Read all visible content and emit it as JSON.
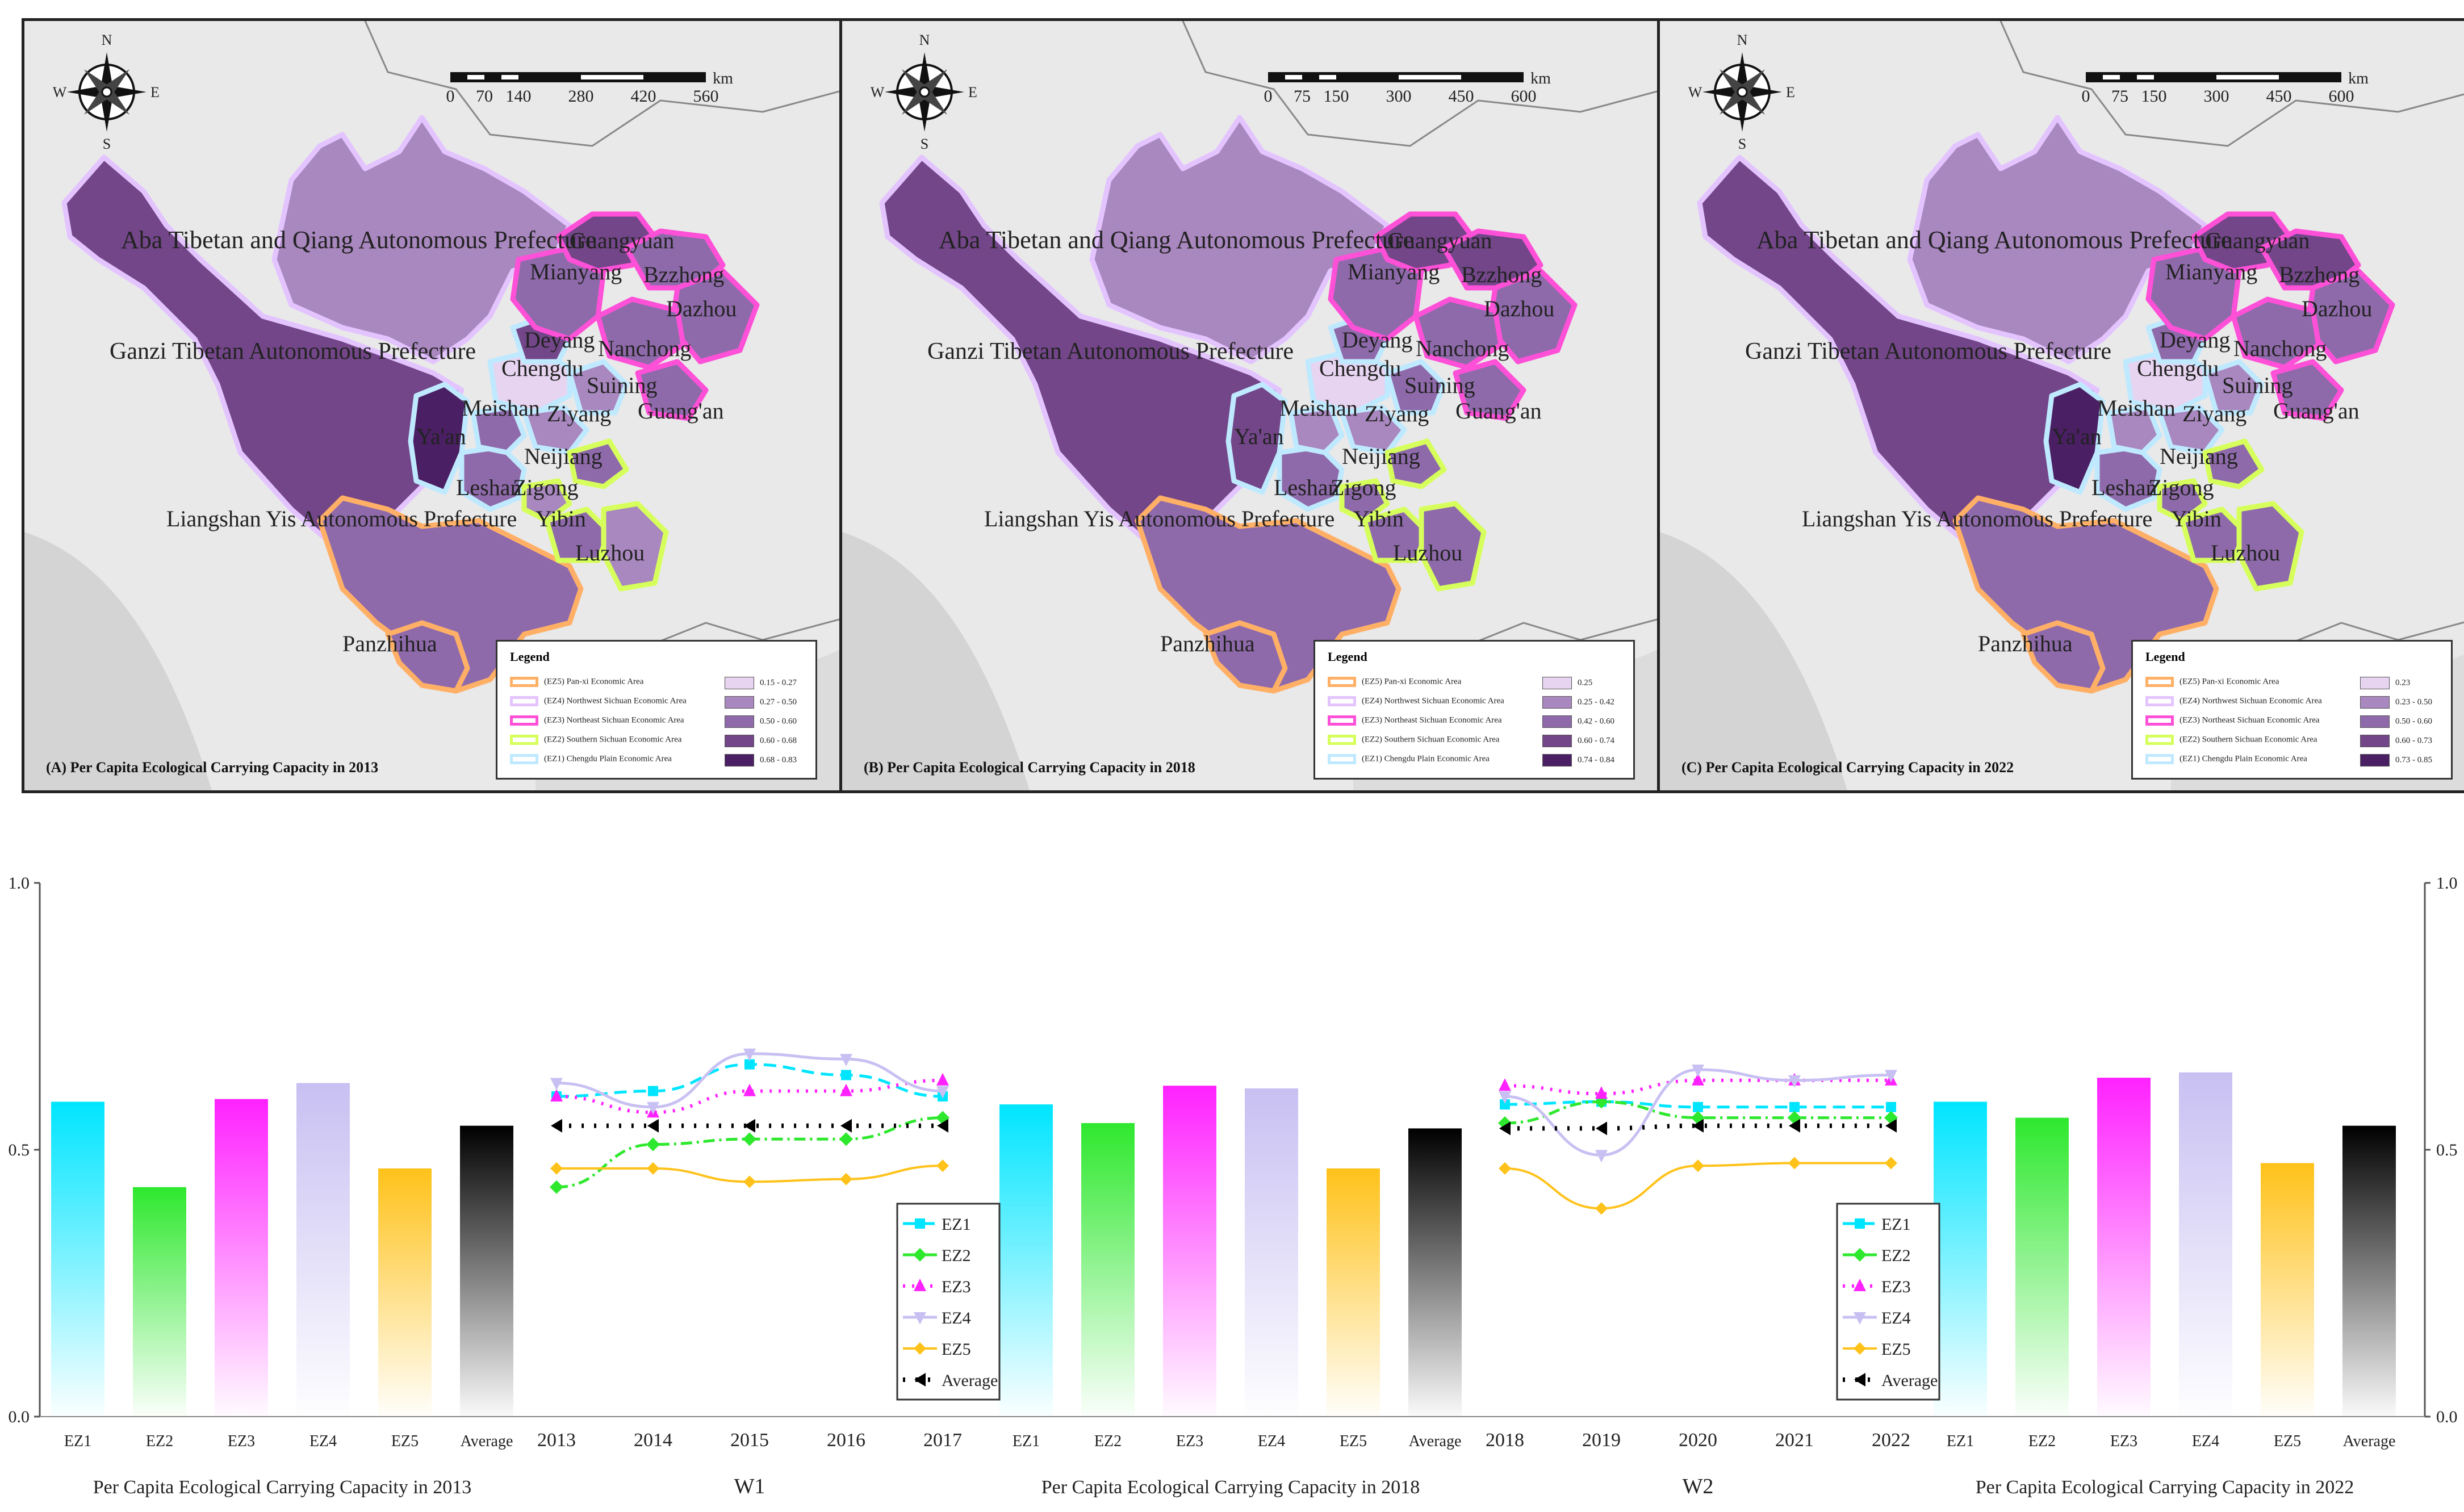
{
  "colors": {
    "EZ1": "#00e5ff",
    "EZ2": "#2ee82e",
    "EZ3": "#ff22ff",
    "EZ4": "#c8c0f2",
    "EZ5": "#ffc21a",
    "Average": "#000000",
    "class1": "#e7d4f1",
    "class2": "#a987bf",
    "class3": "#8f6aab",
    "class4": "#734689",
    "class5": "#4a1f63"
  },
  "maps": [
    {
      "title": "(A) Per Capita Ecological Carrying Capacity in 2013",
      "scale_ticks": [
        "0",
        "70",
        "140",
        "280",
        "420",
        "560"
      ],
      "scale_unit": "km",
      "legend_classes": [
        "0.15 - 0.27",
        "0.27 - 0.50",
        "0.50 - 0.60",
        "0.60 - 0.68",
        "0.68 - 0.83"
      ]
    },
    {
      "title": "(B) Per Capita Ecological Carrying Capacity in 2018",
      "scale_ticks": [
        "0",
        "75",
        "150",
        "300",
        "450",
        "600"
      ],
      "scale_unit": "km",
      "legend_classes": [
        "0.25",
        "0.25 - 0.42",
        "0.42 - 0.60",
        "0.60 - 0.74",
        "0.74 - 0.84"
      ]
    },
    {
      "title": "(C) Per Capita Ecological Carrying Capacity in 2022",
      "scale_ticks": [
        "0",
        "75",
        "150",
        "300",
        "450",
        "600"
      ],
      "scale_unit": "km",
      "legend_classes": [
        "0.23",
        "0.23 - 0.50",
        "0.50 - 0.60",
        "0.60 - 0.73",
        "0.73 - 0.85"
      ]
    }
  ],
  "compass": {
    "n": "N",
    "s": "S",
    "e": "E",
    "w": "W"
  },
  "legend": {
    "title": "Legend",
    "zones": [
      "(EZ5) Pan-xi Economic Area",
      "(EZ4) Northwest Sichuan Economic Area",
      "(EZ3) Northeast Sichuan Economic Area",
      "(EZ2) Southern Sichuan Economic Area",
      "(EZ1) Chengdu Plain Economic Area"
    ]
  },
  "region_names": {
    "aba": "Aba Tibetan and Qiang Autonomous Prefecture",
    "ganzi": "Ganzi Tibetan Autonomous Prefecture",
    "liangshan": "Liangshan Yis Autonomous Prefecture",
    "guangyuan": "Guangyuan",
    "mianyang": "Mianyang",
    "bzzhong": "Bzzhong",
    "dazhou": "Dazhou",
    "deyang": "Deyang",
    "nanchong": "Nanchong",
    "chengdu": "Chengdu",
    "suining": "Suining",
    "guangan": "Guang'an",
    "yaan": "Ya'an",
    "meishan": "Meishan",
    "ziyang": "Ziyang",
    "neijiang": "Neijiang",
    "leshan": "Leshan",
    "zigong": "Zigong",
    "yibin": "Yibin",
    "luzhou": "Luzhou",
    "panzhihua": "Panzhihua"
  },
  "chart_data": {
    "type": "bar",
    "ylim": [
      0,
      1
    ],
    "yticks": [
      "0.0",
      "0.5",
      "1.0"
    ],
    "bar_groups": [
      {
        "caption": "Per Capita Ecological Carrying Capacity in 2013",
        "categories": [
          "EZ1",
          "EZ2",
          "EZ3",
          "EZ4",
          "EZ5",
          "Average"
        ],
        "values": [
          0.59,
          0.43,
          0.595,
          0.625,
          0.465,
          0.545
        ]
      },
      {
        "caption": "Per Capita Ecological Carrying Capacity in 2018",
        "categories": [
          "EZ1",
          "EZ2",
          "EZ3",
          "EZ4",
          "EZ5",
          "Average"
        ],
        "values": [
          0.585,
          0.55,
          0.62,
          0.615,
          0.465,
          0.54
        ]
      },
      {
        "caption": "Per Capita Ecological Carrying Capacity in 2022",
        "categories": [
          "EZ1",
          "EZ2",
          "EZ3",
          "EZ4",
          "EZ5",
          "Average"
        ],
        "values": [
          0.59,
          0.56,
          0.635,
          0.645,
          0.475,
          0.545
        ]
      }
    ],
    "line_groups": [
      {
        "caption": "W1",
        "x": [
          "2013",
          "2014",
          "2015",
          "2016",
          "2017"
        ],
        "series": [
          {
            "name": "EZ1",
            "values": [
              0.6,
              0.61,
              0.66,
              0.64,
              0.6
            ]
          },
          {
            "name": "EZ2",
            "values": [
              0.43,
              0.51,
              0.52,
              0.52,
              0.56
            ]
          },
          {
            "name": "EZ3",
            "values": [
              0.6,
              0.57,
              0.61,
              0.61,
              0.63
            ]
          },
          {
            "name": "EZ4",
            "values": [
              0.625,
              0.58,
              0.68,
              0.67,
              0.61
            ]
          },
          {
            "name": "EZ5",
            "values": [
              0.465,
              0.465,
              0.44,
              0.445,
              0.47
            ]
          },
          {
            "name": "Average",
            "values": [
              0.545,
              0.545,
              0.545,
              0.545,
              0.545
            ]
          }
        ]
      },
      {
        "caption": "W2",
        "x": [
          "2018",
          "2019",
          "2020",
          "2021",
          "2022"
        ],
        "series": [
          {
            "name": "EZ1",
            "values": [
              0.585,
              0.59,
              0.58,
              0.58,
              0.58
            ]
          },
          {
            "name": "EZ2",
            "values": [
              0.55,
              0.59,
              0.56,
              0.56,
              0.56
            ]
          },
          {
            "name": "EZ3",
            "values": [
              0.62,
              0.605,
              0.63,
              0.63,
              0.63
            ]
          },
          {
            "name": "EZ4",
            "values": [
              0.6,
              0.49,
              0.65,
              0.63,
              0.64
            ]
          },
          {
            "name": "EZ5",
            "values": [
              0.465,
              0.39,
              0.47,
              0.475,
              0.475
            ]
          },
          {
            "name": "Average",
            "values": [
              0.54,
              0.54,
              0.545,
              0.545,
              0.545
            ]
          }
        ]
      }
    ],
    "legend": [
      "EZ1",
      "EZ2",
      "EZ3",
      "EZ4",
      "EZ5",
      "Average"
    ]
  }
}
